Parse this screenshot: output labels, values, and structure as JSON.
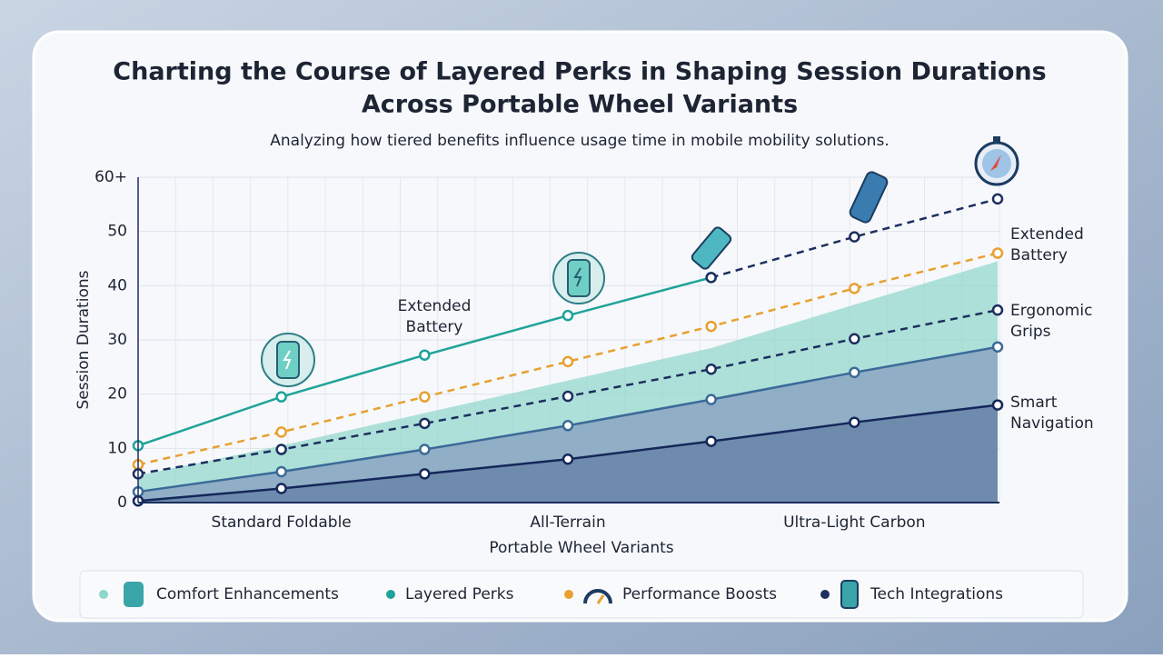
{
  "chart_data": {
    "type": "line",
    "title": "Charting the Course of Layered Perks in Shaping Session Durations",
    "title_line2": "Across Portable Wheel Variants",
    "subtitle": "Analyzing how tiered benefits influence usage time in mobile mobility solutions.",
    "x_label": "Portable Wheel Variants",
    "y_label": "Session Durations",
    "categories": [
      null,
      "Standard Foldable",
      null,
      "All-Terrain",
      null,
      "Ultra-Light Carbon",
      null
    ],
    "ylim": [
      0,
      60
    ],
    "yticks": [
      0,
      10,
      20,
      30,
      40,
      50,
      {
        "value": 60,
        "label": "60+"
      }
    ],
    "grid": true,
    "series": [
      {
        "name": "Comfort Enhancements",
        "color": "#8fd6cb",
        "style": "area",
        "values": [
          5,
          10.5,
          16.5,
          22.5,
          28.5,
          36.5,
          44.5
        ]
      },
      {
        "name": "Layered Perks",
        "color": "#1fa39a",
        "style": "line",
        "values": [
          10.5,
          19.5,
          27.2,
          34.5,
          41.5,
          null,
          null
        ]
      },
      {
        "name": "Performance Boosts",
        "color": "#e8a030",
        "style": "dashed",
        "values": [
          7,
          13,
          19.5,
          26,
          32.5,
          39.5,
          46
        ]
      },
      {
        "name": "Tech Integrations",
        "color": "#1c2f5e",
        "style": "dashed",
        "values": [
          5.3,
          9.8,
          14.6,
          19.6,
          24.6,
          30.2,
          35.5
        ]
      },
      {
        "color": "#1c2f5e",
        "style": "dashed",
        "values": [
          null,
          null,
          null,
          null,
          41.5,
          49,
          56
        ]
      },
      {
        "color": "#3b6a98",
        "fill": "#8da8c3",
        "style": "filled-line",
        "values": [
          2,
          5.7,
          9.8,
          14.2,
          19,
          24,
          28.7
        ]
      },
      {
        "color": "#14275a",
        "fill": "#6a86a8",
        "style": "filled-line",
        "values": [
          0.3,
          2.6,
          5.3,
          8,
          11.3,
          14.8,
          18
        ]
      }
    ],
    "annotations": [
      {
        "lines": [
          "Extended",
          "Battery"
        ]
      },
      {
        "lines": [
          "Extended",
          "Battery"
        ]
      },
      {
        "lines": [
          "Ergonomic",
          "Grips"
        ]
      },
      {
        "lines": [
          "Smart",
          "Navigation"
        ]
      }
    ]
  }
}
